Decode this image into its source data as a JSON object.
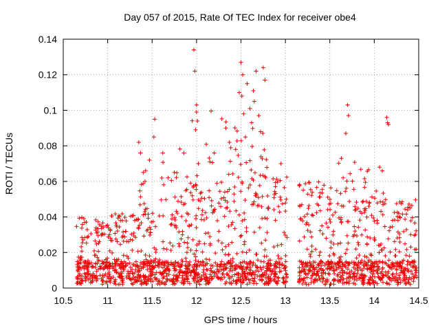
{
  "chart_data": {
    "type": "scatter",
    "title": "Day 057 of 2015, Rate Of TEC Index for receiver obe4",
    "xlabel": "GPS time / hours",
    "ylabel": "ROTI / TECUs",
    "xlim": [
      10.5,
      14.5
    ],
    "ylim": [
      0,
      0.14
    ],
    "grid": true,
    "x_ticks": [
      10.5,
      11,
      11.5,
      12,
      12.5,
      13,
      13.5,
      14,
      14.5
    ],
    "x_tick_labels": [
      "10.5",
      "11",
      "11.5",
      "12",
      "12.5",
      "13",
      "13.5",
      "14",
      "14.5"
    ],
    "y_ticks": [
      0,
      0.02,
      0.04,
      0.06,
      0.08,
      0.1,
      0.12,
      0.14
    ],
    "y_tick_labels": [
      "0",
      "0.02",
      "0.04",
      "0.06",
      "0.08",
      "0.1",
      "0.12",
      "0.14"
    ],
    "marker": "+",
    "marker_color": "#ee0000",
    "series": [
      {
        "name": "ROTI",
        "x_range": [
          10.65,
          14.48
        ],
        "data_gap": [
          13.02,
          13.15
        ],
        "notable_points": [
          {
            "x": 11.35,
            "y": 0.082
          },
          {
            "x": 11.37,
            "y": 0.076
          },
          {
            "x": 11.4,
            "y": 0.065
          },
          {
            "x": 11.42,
            "y": 0.06
          },
          {
            "x": 11.47,
            "y": 0.072
          },
          {
            "x": 11.53,
            "y": 0.095
          },
          {
            "x": 11.52,
            "y": 0.085
          },
          {
            "x": 11.62,
            "y": 0.076
          },
          {
            "x": 11.68,
            "y": 0.062
          },
          {
            "x": 11.75,
            "y": 0.065
          },
          {
            "x": 11.97,
            "y": 0.134
          },
          {
            "x": 11.98,
            "y": 0.122
          },
          {
            "x": 12.0,
            "y": 0.103
          },
          {
            "x": 12.0,
            "y": 0.099
          },
          {
            "x": 11.99,
            "y": 0.089
          },
          {
            "x": 12.01,
            "y": 0.094
          },
          {
            "x": 12.02,
            "y": 0.07
          },
          {
            "x": 12.15,
            "y": 0.071
          },
          {
            "x": 12.2,
            "y": 0.076
          },
          {
            "x": 12.33,
            "y": 0.09
          },
          {
            "x": 12.37,
            "y": 0.082
          },
          {
            "x": 12.44,
            "y": 0.078
          },
          {
            "x": 12.48,
            "y": 0.11
          },
          {
            "x": 12.5,
            "y": 0.127
          },
          {
            "x": 12.52,
            "y": 0.12
          },
          {
            "x": 12.51,
            "y": 0.108
          },
          {
            "x": 12.53,
            "y": 0.098
          },
          {
            "x": 12.55,
            "y": 0.085
          },
          {
            "x": 12.57,
            "y": 0.115
          },
          {
            "x": 12.6,
            "y": 0.101
          },
          {
            "x": 12.62,
            "y": 0.093
          },
          {
            "x": 12.64,
            "y": 0.111
          },
          {
            "x": 12.65,
            "y": 0.105
          },
          {
            "x": 12.67,
            "y": 0.122
          },
          {
            "x": 12.7,
            "y": 0.097
          },
          {
            "x": 12.75,
            "y": 0.124
          },
          {
            "x": 12.77,
            "y": 0.117
          },
          {
            "x": 12.72,
            "y": 0.088
          },
          {
            "x": 12.95,
            "y": 0.07
          },
          {
            "x": 13.63,
            "y": 0.073
          },
          {
            "x": 13.65,
            "y": 0.062
          },
          {
            "x": 13.68,
            "y": 0.087
          },
          {
            "x": 13.7,
            "y": 0.103
          },
          {
            "x": 13.71,
            "y": 0.097
          },
          {
            "x": 14.06,
            "y": 0.068
          },
          {
            "x": 14.09,
            "y": 0.066
          },
          {
            "x": 14.14,
            "y": 0.096
          },
          {
            "x": 14.15,
            "y": 0.093
          },
          {
            "x": 14.16,
            "y": 0.092
          }
        ],
        "bands": [
          {
            "x_range": [
              10.65,
              11.0
            ],
            "typical_max": 0.04,
            "peak": 0.053
          },
          {
            "x_range": [
              11.0,
              11.3
            ],
            "typical_max": 0.042,
            "peak": 0.046
          },
          {
            "x_range": [
              11.3,
              11.8
            ],
            "typical_max": 0.05,
            "peak": 0.095
          },
          {
            "x_range": [
              11.8,
              12.25
            ],
            "typical_max": 0.06,
            "peak": 0.134
          },
          {
            "x_range": [
              12.25,
              12.8
            ],
            "typical_max": 0.065,
            "peak": 0.127
          },
          {
            "x_range": [
              12.8,
              13.02
            ],
            "typical_max": 0.065,
            "peak": 0.073
          },
          {
            "x_range": [
              13.15,
              13.6
            ],
            "typical_max": 0.06,
            "peak": 0.065
          },
          {
            "x_range": [
              13.6,
              13.8
            ],
            "typical_max": 0.06,
            "peak": 0.103
          },
          {
            "x_range": [
              13.8,
              14.2
            ],
            "typical_max": 0.055,
            "peak": 0.096
          },
          {
            "x_range": [
              14.2,
              14.48
            ],
            "typical_max": 0.05,
            "peak": 0.053
          }
        ],
        "baseline_range": [
          0.002,
          0.015
        ]
      }
    ]
  }
}
